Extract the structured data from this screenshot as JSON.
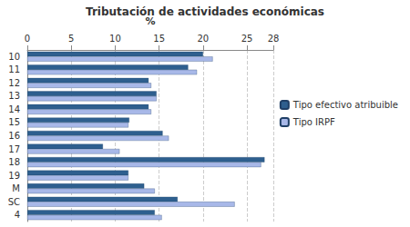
{
  "chart_data": {
    "type": "bar",
    "title": "Tributación de actividades económicas",
    "xlabel": "%",
    "orientation": "horizontal",
    "categories": [
      "10",
      "11",
      "12",
      "13",
      "14",
      "15",
      "16",
      "17",
      "18",
      "19",
      "M",
      "SC",
      "4"
    ],
    "series": [
      {
        "name": "Tipo efectivo atribuible",
        "color": "#2e5f8e",
        "values": [
          20.0,
          18.3,
          13.8,
          14.7,
          13.8,
          11.6,
          15.4,
          8.6,
          27.0,
          11.5,
          13.3,
          17.1,
          14.5
        ]
      },
      {
        "name": "Tipo IRPF",
        "color": "#a8b8e8",
        "values": [
          21.1,
          19.3,
          14.1,
          14.7,
          14.1,
          11.5,
          16.1,
          10.5,
          26.6,
          11.5,
          14.5,
          23.6,
          15.3
        ]
      }
    ],
    "xlim": [
      0,
      28
    ],
    "xticks": [
      0,
      5,
      10,
      15,
      20,
      25
    ],
    "grid": true,
    "legend": "right"
  }
}
